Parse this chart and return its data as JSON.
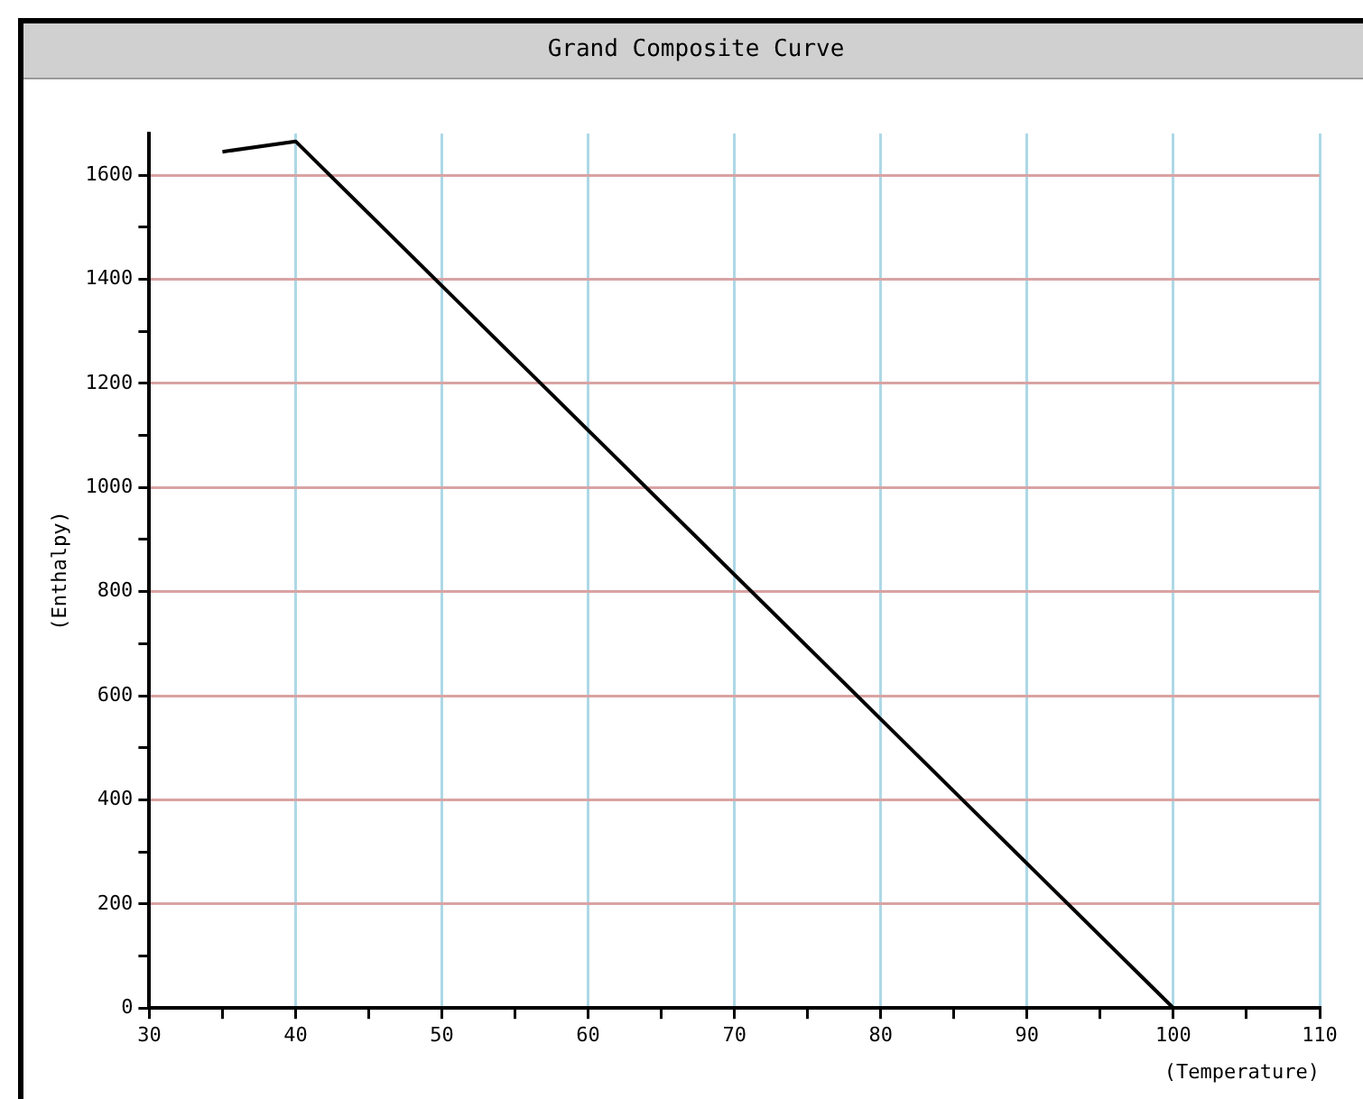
{
  "chart_data": {
    "type": "line",
    "title": "Grand Composite Curve",
    "xlabel": "(Temperature)",
    "ylabel": "(Enthalpy)",
    "x": [
      35,
      40,
      100
    ],
    "series": [
      {
        "color": "#000000",
        "values": [
          1645,
          1665,
          0
        ]
      }
    ],
    "xlim": [
      30,
      110
    ],
    "xticks": [
      30,
      {
        "value": 35,
        "label": null
      },
      40,
      {
        "value": 45,
        "label": null
      },
      50,
      {
        "value": 55,
        "label": null
      },
      60,
      {
        "value": 65,
        "label": null
      },
      70,
      {
        "value": 75,
        "label": null
      },
      80,
      {
        "value": 85,
        "label": null
      },
      90,
      {
        "value": 95,
        "label": null
      },
      100,
      {
        "value": 105,
        "label": null
      },
      110
    ],
    "ylim": [
      0,
      1680
    ],
    "yticks": [
      0,
      {
        "value": 100,
        "label": null
      },
      200,
      {
        "value": 300,
        "label": null
      },
      400,
      {
        "value": 500,
        "label": null
      },
      600,
      {
        "value": 700,
        "label": null
      },
      800,
      {
        "value": 900,
        "label": null
      },
      1000,
      {
        "value": 1100,
        "label": null
      },
      1200,
      {
        "value": 1300,
        "label": null
      },
      1400,
      {
        "value": 1500,
        "label": null
      },
      1600
    ],
    "grid": true,
    "legend": false,
    "marker": "none",
    "line_style": "solid"
  }
}
